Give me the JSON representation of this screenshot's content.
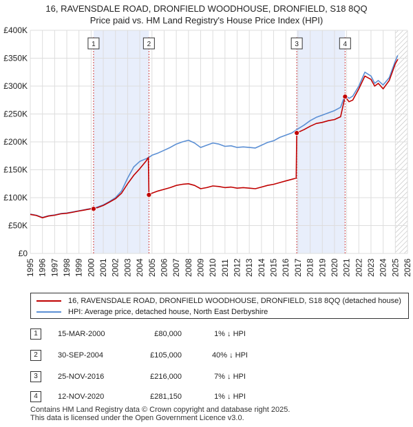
{
  "title": {
    "line1": "16, RAVENSDALE ROAD, DRONFIELD WOODHOUSE, DRONFIELD, S18 8QQ",
    "line2": "Price paid vs. HM Land Registry's House Price Index (HPI)"
  },
  "colors": {
    "price_paid": "#c00000",
    "hpi": "#5b8fd4",
    "shade": "#e8eefb",
    "grid": "#dddddd"
  },
  "chart_data": {
    "type": "line",
    "ylim": [
      0,
      400000
    ],
    "xlim": [
      1995,
      2026
    ],
    "y_ticks": [
      0,
      50000,
      100000,
      150000,
      200000,
      250000,
      300000,
      350000,
      400000
    ],
    "y_tick_labels": [
      "£0",
      "£50K",
      "£100K",
      "£150K",
      "£200K",
      "£250K",
      "£300K",
      "£350K",
      "£400K"
    ],
    "x_ticks": [
      1995,
      1996,
      1997,
      1998,
      1999,
      2000,
      2001,
      2002,
      2003,
      2004,
      2005,
      2006,
      2007,
      2008,
      2009,
      2010,
      2011,
      2012,
      2013,
      2014,
      2015,
      2016,
      2017,
      2018,
      2019,
      2020,
      2021,
      2022,
      2023,
      2024,
      2025,
      2026
    ],
    "shaded_ranges": [
      [
        2000.2,
        2004.75
      ],
      [
        2016.9,
        2020.87
      ]
    ],
    "hatched_from": 2025.0,
    "series": [
      {
        "name": "16, RAVENSDALE ROAD, DRONFIELD WOODHOUSE, DRONFIELD, S18 8QQ (detached house)",
        "color": "#c00000",
        "points": [
          [
            1995.0,
            70000
          ],
          [
            1995.5,
            68000
          ],
          [
            1996.0,
            64000
          ],
          [
            1996.5,
            67000
          ],
          [
            1997.0,
            68500
          ],
          [
            1997.5,
            71000
          ],
          [
            1998.0,
            72000
          ],
          [
            1998.5,
            74000
          ],
          [
            1999.0,
            76000
          ],
          [
            1999.5,
            78000
          ],
          [
            2000.0,
            80000
          ],
          [
            2000.5,
            82000
          ],
          [
            2001.0,
            86000
          ],
          [
            2001.5,
            92000
          ],
          [
            2002.0,
            98000
          ],
          [
            2002.5,
            108000
          ],
          [
            2003.0,
            125000
          ],
          [
            2003.5,
            140000
          ],
          [
            2004.0,
            152000
          ],
          [
            2004.5,
            165000
          ],
          [
            2004.7,
            172000
          ],
          [
            2004.75,
            105000
          ],
          [
            2005.0,
            108000
          ],
          [
            2005.5,
            112000
          ],
          [
            2006.0,
            115000
          ],
          [
            2006.5,
            118000
          ],
          [
            2007.0,
            122000
          ],
          [
            2007.5,
            124000
          ],
          [
            2008.0,
            125000
          ],
          [
            2008.5,
            122000
          ],
          [
            2009.0,
            116000
          ],
          [
            2009.5,
            118000
          ],
          [
            2010.0,
            121000
          ],
          [
            2010.5,
            120000
          ],
          [
            2011.0,
            118000
          ],
          [
            2011.5,
            119000
          ],
          [
            2012.0,
            117000
          ],
          [
            2012.5,
            118000
          ],
          [
            2013.0,
            117000
          ],
          [
            2013.5,
            116000
          ],
          [
            2014.0,
            119000
          ],
          [
            2014.5,
            122000
          ],
          [
            2015.0,
            124000
          ],
          [
            2015.5,
            127000
          ],
          [
            2016.0,
            130000
          ],
          [
            2016.5,
            133000
          ],
          [
            2016.85,
            135000
          ],
          [
            2016.9,
            216000
          ],
          [
            2017.5,
            222000
          ],
          [
            2018.0,
            228000
          ],
          [
            2018.5,
            233000
          ],
          [
            2019.0,
            235000
          ],
          [
            2019.5,
            238000
          ],
          [
            2020.0,
            240000
          ],
          [
            2020.5,
            245000
          ],
          [
            2020.87,
            281150
          ],
          [
            2021.2,
            272000
          ],
          [
            2021.5,
            275000
          ],
          [
            2022.0,
            295000
          ],
          [
            2022.5,
            318000
          ],
          [
            2023.0,
            312000
          ],
          [
            2023.3,
            300000
          ],
          [
            2023.6,
            305000
          ],
          [
            2024.0,
            295000
          ],
          [
            2024.5,
            310000
          ],
          [
            2025.0,
            340000
          ],
          [
            2025.2,
            348000
          ]
        ]
      },
      {
        "name": "HPI: Average price, detached house, North East Derbyshire",
        "color": "#5b8fd4",
        "points": [
          [
            1995.0,
            70500
          ],
          [
            1995.5,
            68500
          ],
          [
            1996.0,
            64500
          ],
          [
            1996.5,
            67500
          ],
          [
            1997.0,
            69000
          ],
          [
            1997.5,
            71500
          ],
          [
            1998.0,
            72500
          ],
          [
            1998.5,
            74500
          ],
          [
            1999.0,
            76500
          ],
          [
            1999.5,
            78500
          ],
          [
            2000.0,
            80800
          ],
          [
            2000.5,
            83000
          ],
          [
            2001.0,
            87000
          ],
          [
            2001.5,
            93000
          ],
          [
            2002.0,
            100000
          ],
          [
            2002.5,
            112000
          ],
          [
            2003.0,
            135000
          ],
          [
            2003.5,
            155000
          ],
          [
            2004.0,
            165000
          ],
          [
            2004.75,
            172000
          ],
          [
            2005.0,
            176000
          ],
          [
            2005.5,
            180000
          ],
          [
            2006.0,
            185000
          ],
          [
            2006.5,
            190000
          ],
          [
            2007.0,
            196000
          ],
          [
            2007.5,
            200000
          ],
          [
            2008.0,
            203000
          ],
          [
            2008.5,
            198000
          ],
          [
            2009.0,
            190000
          ],
          [
            2009.5,
            194000
          ],
          [
            2010.0,
            198000
          ],
          [
            2010.5,
            196000
          ],
          [
            2011.0,
            192000
          ],
          [
            2011.5,
            193000
          ],
          [
            2012.0,
            190000
          ],
          [
            2012.5,
            191000
          ],
          [
            2013.0,
            190000
          ],
          [
            2013.5,
            189000
          ],
          [
            2014.0,
            194000
          ],
          [
            2014.5,
            199000
          ],
          [
            2015.0,
            202000
          ],
          [
            2015.5,
            208000
          ],
          [
            2016.0,
            212000
          ],
          [
            2016.5,
            216000
          ],
          [
            2016.9,
            222000
          ],
          [
            2017.5,
            230000
          ],
          [
            2018.0,
            238000
          ],
          [
            2018.5,
            244000
          ],
          [
            2019.0,
            248000
          ],
          [
            2019.5,
            252000
          ],
          [
            2020.0,
            256000
          ],
          [
            2020.5,
            262000
          ],
          [
            2020.87,
            284000
          ],
          [
            2021.2,
            278000
          ],
          [
            2021.5,
            282000
          ],
          [
            2022.0,
            300000
          ],
          [
            2022.5,
            325000
          ],
          [
            2023.0,
            318000
          ],
          [
            2023.3,
            305000
          ],
          [
            2023.6,
            310000
          ],
          [
            2024.0,
            302000
          ],
          [
            2024.5,
            315000
          ],
          [
            2025.0,
            345000
          ],
          [
            2025.2,
            355000
          ]
        ]
      }
    ],
    "markers": [
      {
        "label": "1",
        "x": 2000.2,
        "y": 80000
      },
      {
        "label": "2",
        "x": 2004.75,
        "y": 105000
      },
      {
        "label": "3",
        "x": 2016.9,
        "y": 216000
      },
      {
        "label": "4",
        "x": 2020.87,
        "y": 281150
      }
    ]
  },
  "legend": {
    "items": [
      {
        "label": "16, RAVENSDALE ROAD, DRONFIELD WOODHOUSE, DRONFIELD, S18 8QQ (detached house)"
      },
      {
        "label": "HPI: Average price, detached house, North East Derbyshire"
      }
    ]
  },
  "transactions": [
    {
      "num": "1",
      "date": "15-MAR-2000",
      "price": "£80,000",
      "hpi": "1% ↓ HPI"
    },
    {
      "num": "2",
      "date": "30-SEP-2004",
      "price": "£105,000",
      "hpi": "40% ↓ HPI"
    },
    {
      "num": "3",
      "date": "25-NOV-2016",
      "price": "£216,000",
      "hpi": "7% ↓ HPI"
    },
    {
      "num": "4",
      "date": "12-NOV-2020",
      "price": "£281,150",
      "hpi": "1% ↓ HPI"
    }
  ],
  "footer": {
    "line1": "Contains HM Land Registry data © Crown copyright and database right 2025.",
    "line2": "This data is licensed under the Open Government Licence v3.0."
  }
}
